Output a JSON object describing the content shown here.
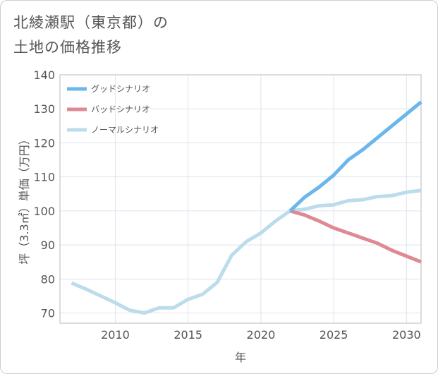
{
  "title": {
    "line1": "北綾瀬駅（東京都）の",
    "line2": "土地の価格推移"
  },
  "chart_data": {
    "type": "line",
    "xlabel": "年",
    "ylabel": "坪（3.3㎡）単価（万円）",
    "xlim": [
      2006.2,
      2031
    ],
    "ylim": [
      67,
      140
    ],
    "x_ticks": [
      2010,
      2015,
      2020,
      2025,
      2030
    ],
    "y_ticks": [
      70,
      80,
      90,
      100,
      110,
      120,
      130,
      140
    ],
    "grid": true,
    "legend_position": "top-left",
    "series": [
      {
        "name": "グッドシナリオ",
        "color": "#6bb6ea",
        "x": [
          2022,
          2023,
          2024,
          2025,
          2026,
          2027,
          2028,
          2029,
          2030,
          2031
        ],
        "values": [
          100,
          104,
          107,
          110.5,
          115,
          118,
          121.5,
          125,
          128.5,
          132
        ]
      },
      {
        "name": "バッドシナリオ",
        "color": "#dd8a94",
        "x": [
          2022,
          2023,
          2024,
          2025,
          2026,
          2027,
          2028,
          2029,
          2030,
          2031
        ],
        "values": [
          100,
          98.8,
          97,
          95,
          93.5,
          92,
          90.5,
          88.4,
          86.7,
          85
        ]
      },
      {
        "name": "ノーマルシナリオ",
        "color": "#bcdcec",
        "x": [
          2007,
          2008,
          2009,
          2010,
          2011,
          2012,
          2013,
          2014,
          2015,
          2016,
          2017,
          2018,
          2019,
          2020,
          2021,
          2022,
          2023,
          2024,
          2025,
          2026,
          2027,
          2028,
          2029,
          2030,
          2031
        ],
        "values": [
          78.8,
          77,
          75,
          73,
          70.8,
          70,
          71.5,
          71.5,
          74,
          75.5,
          79,
          87,
          91,
          93.5,
          97,
          100,
          100.5,
          101.5,
          101.8,
          103,
          103.3,
          104.2,
          104.5,
          105.5,
          106
        ]
      }
    ]
  }
}
